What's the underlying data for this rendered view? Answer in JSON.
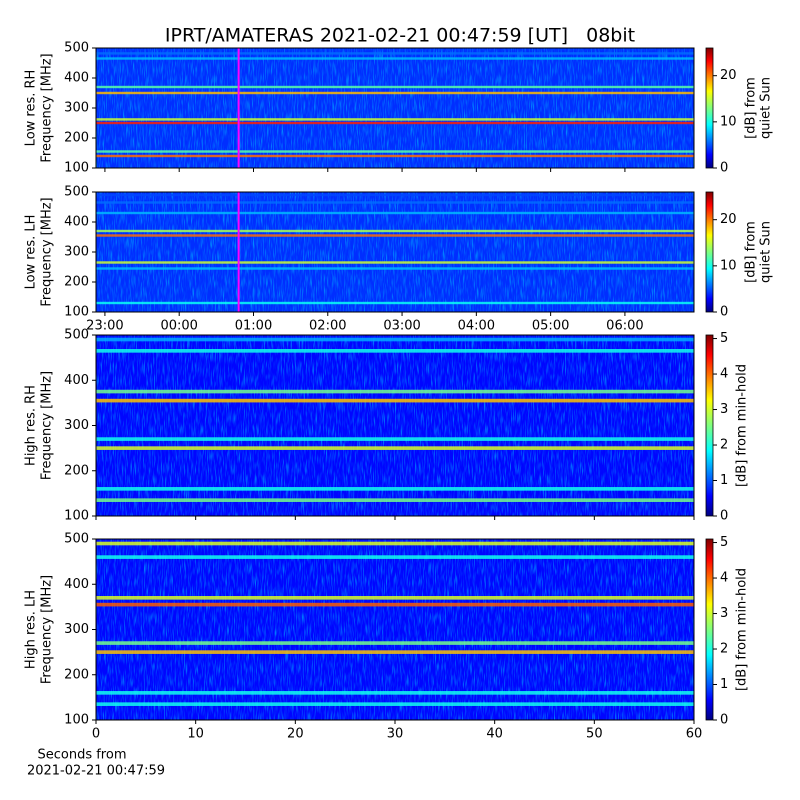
{
  "chart_data": [
    {
      "type": "heatmap",
      "title": "IPRT/AMATERAS 2021-02-21 00:47:59 [UT]   08bit",
      "ylabel": [
        "Low res. RH",
        "Frequency [MHz]"
      ],
      "ylim": [
        100,
        500
      ],
      "yticks": [
        100,
        200,
        300,
        400,
        500
      ],
      "xlim": [
        22.88,
        30.93
      ],
      "marker_x": 24.8,
      "marker_color": "#ff00ff",
      "bands": {
        "freq": [
          140,
          155,
          250,
          262,
          350,
          370,
          465,
          482
        ],
        "level": [
          20,
          12,
          22,
          15,
          18,
          12,
          8,
          6
        ]
      },
      "colorbar": {
        "label": [
          "[dB] from",
          "quiet Sun"
        ],
        "lim": [
          0,
          26
        ],
        "ticks": [
          0,
          10,
          20
        ]
      }
    },
    {
      "type": "heatmap",
      "ylabel": [
        "Low res. LH",
        "Frequency [MHz]"
      ],
      "ylim": [
        100,
        500
      ],
      "yticks": [
        100,
        200,
        300,
        400,
        500
      ],
      "xlim": [
        22.88,
        30.93
      ],
      "marker_x": 24.8,
      "marker_color": "#ff00ff",
      "xticks": [
        {
          "value": 23,
          "label": "23:00"
        },
        {
          "value": 24,
          "label": "00:00"
        },
        {
          "value": 25,
          "label": "01:00"
        },
        {
          "value": 26,
          "label": "02:00"
        },
        {
          "value": 27,
          "label": "03:00"
        },
        {
          "value": 28,
          "label": "04:00"
        },
        {
          "value": 29,
          "label": "05:00"
        },
        {
          "value": 30,
          "label": "06:00"
        }
      ],
      "bands": {
        "freq": [
          130,
          245,
          265,
          355,
          370,
          430,
          465,
          490
        ],
        "level": [
          10,
          8,
          15,
          20,
          14,
          8,
          6,
          5
        ]
      },
      "colorbar": {
        "label": [
          "[dB] from",
          "quiet Sun"
        ],
        "lim": [
          0,
          26
        ],
        "ticks": [
          0,
          10,
          20
        ]
      }
    },
    {
      "type": "heatmap",
      "ylabel": [
        "High res. RH",
        "Frequency [MHz]"
      ],
      "ylim": [
        100,
        500
      ],
      "yticks": [
        100,
        200,
        300,
        400,
        500
      ],
      "xlim": [
        0,
        60
      ],
      "bands": {
        "freq": [
          135,
          160,
          250,
          270,
          355,
          375,
          465,
          490
        ],
        "level": [
          2.5,
          2,
          3,
          2,
          3.5,
          2.5,
          2,
          1.5
        ]
      },
      "colorbar": {
        "label": [
          "[dB] from min-hold"
        ],
        "lim": [
          0,
          5.1
        ],
        "ticks": [
          0,
          1,
          2,
          3,
          4,
          5
        ]
      }
    },
    {
      "type": "heatmap",
      "ylabel": [
        "High res. LH",
        "Frequency [MHz]"
      ],
      "ylim": [
        100,
        500
      ],
      "yticks": [
        100,
        200,
        300,
        400,
        500
      ],
      "xlim": [
        0,
        60
      ],
      "xticks": [
        0,
        10,
        20,
        30,
        40,
        50,
        60
      ],
      "xlabel": [
        "Seconds from",
        "2021-02-21 00:47:59"
      ],
      "bands": {
        "freq": [
          135,
          160,
          250,
          270,
          355,
          370,
          460,
          490
        ],
        "level": [
          2,
          2,
          3.5,
          2.5,
          4,
          3,
          2,
          3
        ]
      },
      "colorbar": {
        "label": [
          "[dB] from min-hold"
        ],
        "lim": [
          0,
          5.1
        ],
        "ticks": [
          0,
          1,
          2,
          3,
          4,
          5
        ]
      }
    }
  ]
}
